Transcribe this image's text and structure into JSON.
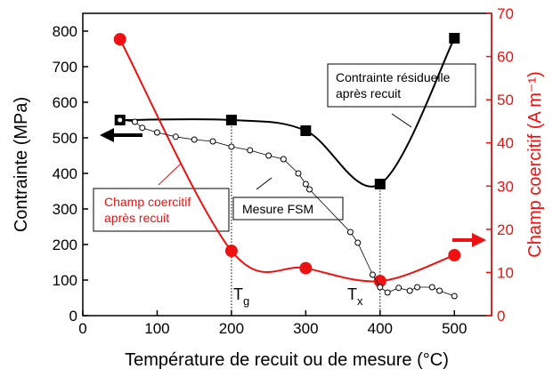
{
  "chart_data": {
    "type": "line",
    "xlabel": "Température de recuit ou de mesure (°C)",
    "ylabel": "Contrainte (MPa)",
    "y2label": "Champ coercitif (A m⁻¹)",
    "xlim": [
      0,
      550
    ],
    "xticks": [
      0,
      100,
      200,
      300,
      400,
      500
    ],
    "ylim": [
      0,
      850
    ],
    "yticks": [
      0,
      100,
      200,
      300,
      400,
      500,
      600,
      700,
      800
    ],
    "y2lim": [
      0,
      70
    ],
    "y2ticks": [
      0,
      10,
      20,
      30,
      40,
      50,
      60,
      70
    ],
    "series": [
      {
        "name": "Contrainte résiduelle après recuit",
        "color": "#000000",
        "marker": "square",
        "smooth": true,
        "x": [
          50,
          200,
          300,
          400,
          500
        ],
        "values": [
          550,
          550,
          520,
          370,
          780
        ]
      },
      {
        "name": "Champ coercitif après recuit",
        "color": "#ee1111",
        "marker": "circle",
        "smooth": true,
        "axis": "y2",
        "x": [
          50,
          200,
          300,
          400,
          500
        ],
        "values": [
          64,
          15,
          11,
          8,
          14
        ]
      },
      {
        "name": "Mesure FSM",
        "color": "#000000",
        "marker": "open-circle",
        "smooth": false,
        "x": [
          50,
          70,
          80,
          100,
          125,
          150,
          175,
          200,
          225,
          250,
          270,
          290,
          300,
          305,
          360,
          370,
          390,
          400,
          410,
          425,
          440,
          450,
          470,
          480,
          500
        ],
        "values": [
          550,
          545,
          528,
          515,
          503,
          495,
          490,
          475,
          465,
          450,
          440,
          400,
          370,
          355,
          235,
          205,
          115,
          80,
          65,
          78,
          70,
          80,
          80,
          70,
          55
        ]
      }
    ],
    "annotations": [
      {
        "text": "T",
        "sub": "g"
      },
      {
        "text": "T",
        "sub": "x"
      }
    ]
  }
}
